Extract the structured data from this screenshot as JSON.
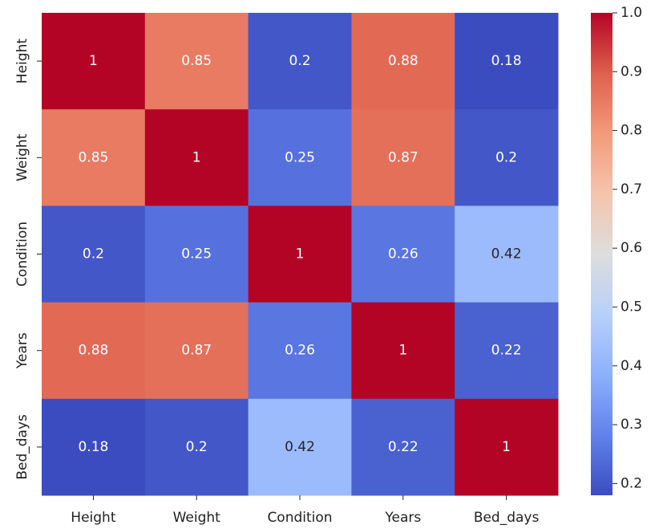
{
  "chart_data": {
    "type": "heatmap",
    "colormap": "coolwarm",
    "x_categories": [
      "Height",
      "Weight",
      "Condition",
      "Years",
      "Bed_days"
    ],
    "y_categories": [
      "Height",
      "Weight",
      "Condition",
      "Years",
      "Bed_days"
    ],
    "values": [
      [
        1,
        0.85,
        0.2,
        0.88,
        0.18
      ],
      [
        0.85,
        1,
        0.25,
        0.87,
        0.2
      ],
      [
        0.2,
        0.25,
        1,
        0.26,
        0.42
      ],
      [
        0.88,
        0.87,
        0.26,
        1,
        0.22
      ],
      [
        0.18,
        0.2,
        0.42,
        0.22,
        1
      ]
    ],
    "clim": [
      0.18,
      1
    ],
    "cticks": [
      0.2,
      0.3,
      0.4,
      0.5,
      0.6,
      0.7,
      0.8,
      0.9,
      {
        "value": 1,
        "label": "1.0"
      }
    ]
  }
}
